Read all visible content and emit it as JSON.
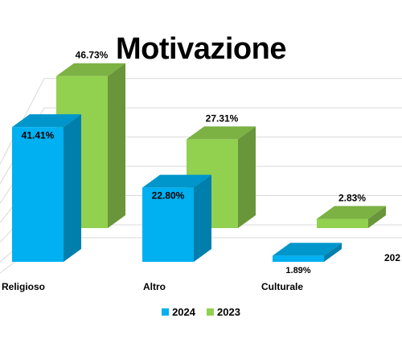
{
  "chart_data": {
    "type": "bar",
    "title": "Motivazione",
    "categories": [
      "Religioso",
      "Altro",
      "Culturale",
      "202"
    ],
    "series": [
      {
        "name": "2024",
        "color": "#00B0F0",
        "values": [
          41.41,
          22.8,
          1.89,
          null
        ],
        "labels": [
          "41.41%",
          "22.80%",
          "1.89%",
          ""
        ]
      },
      {
        "name": "2023",
        "color": "#92D050",
        "values": [
          46.73,
          27.31,
          2.83,
          null
        ],
        "labels": [
          "46.73%",
          "27.31%",
          "2.83%",
          ""
        ]
      }
    ],
    "ylim": [
      0,
      50
    ],
    "grid": true,
    "legend": "bottom",
    "style": "3d-clustered-bar"
  }
}
